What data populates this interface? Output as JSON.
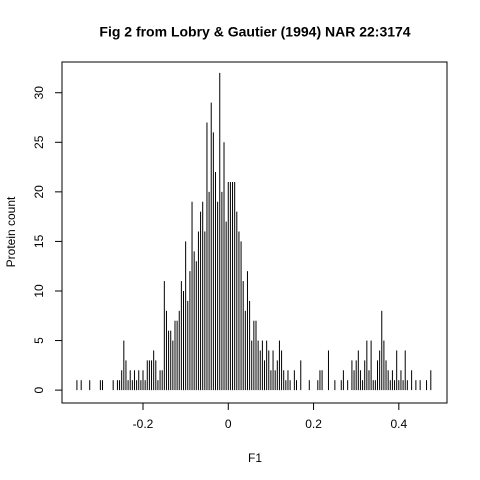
{
  "chart_data": {
    "type": "spike",
    "title": "Fig 2 from Lobry & Gautier (1994) NAR 22:3174",
    "x_label": "F1",
    "y_label": "Protein count",
    "x": [
      -0.355,
      -0.345,
      -0.325,
      -0.3,
      -0.295,
      -0.27,
      -0.26,
      -0.255,
      -0.25,
      -0.245,
      -0.24,
      -0.235,
      -0.23,
      -0.225,
      -0.22,
      -0.215,
      -0.21,
      -0.205,
      -0.2,
      -0.195,
      -0.19,
      -0.185,
      -0.18,
      -0.175,
      -0.17,
      -0.165,
      -0.16,
      -0.155,
      -0.15,
      -0.145,
      -0.14,
      -0.135,
      -0.13,
      -0.125,
      -0.12,
      -0.115,
      -0.11,
      -0.105,
      -0.1,
      -0.095,
      -0.09,
      -0.085,
      -0.08,
      -0.075,
      -0.07,
      -0.065,
      -0.06,
      -0.055,
      -0.05,
      -0.045,
      -0.04,
      -0.035,
      -0.03,
      -0.025,
      -0.02,
      -0.015,
      -0.01,
      -0.005,
      0,
      0.005,
      0.01,
      0.015,
      0.02,
      0.025,
      0.03,
      0.035,
      0.04,
      0.045,
      0.05,
      0.055,
      0.06,
      0.065,
      0.07,
      0.075,
      0.08,
      0.085,
      0.09,
      0.095,
      0.1,
      0.105,
      0.11,
      0.115,
      0.12,
      0.125,
      0.13,
      0.135,
      0.14,
      0.145,
      0.155,
      0.16,
      0.17,
      0.19,
      0.21,
      0.215,
      0.22,
      0.235,
      0.25,
      0.265,
      0.27,
      0.28,
      0.29,
      0.295,
      0.3,
      0.305,
      0.31,
      0.315,
      0.32,
      0.325,
      0.33,
      0.335,
      0.34,
      0.345,
      0.35,
      0.355,
      0.36,
      0.365,
      0.37,
      0.375,
      0.38,
      0.385,
      0.39,
      0.395,
      0.4,
      0.405,
      0.41,
      0.415,
      0.42,
      0.43,
      0.44,
      0.45,
      0.465,
      0.475
    ],
    "values": [
      1,
      1,
      1,
      1,
      1,
      1,
      1,
      1,
      2,
      5,
      3,
      1,
      2,
      1,
      2,
      1,
      2,
      1,
      2,
      1,
      3,
      3,
      3,
      4,
      3,
      1,
      2,
      2,
      11,
      8,
      6,
      6,
      5,
      7,
      7,
      8,
      11,
      10,
      15,
      9,
      12,
      19,
      14,
      13,
      16,
      18,
      19,
      16,
      27,
      20,
      29,
      26,
      22,
      19,
      32,
      20,
      25,
      17,
      21,
      21,
      21,
      21,
      18,
      16,
      15,
      11,
      8,
      12,
      9,
      5,
      7,
      7,
      5,
      4,
      5,
      3,
      5,
      4,
      2,
      4,
      2,
      3,
      5,
      4,
      2,
      1,
      2,
      1,
      2,
      1,
      3,
      1,
      1,
      2,
      2,
      4,
      1,
      1,
      2,
      1,
      3,
      2,
      3,
      4,
      2,
      1,
      3,
      5,
      2,
      5,
      1,
      1,
      3,
      4,
      8,
      5,
      3,
      2,
      1,
      2,
      1,
      4,
      1,
      2,
      1,
      4,
      1,
      2,
      1,
      1,
      1,
      2
    ],
    "color": "#000000",
    "xlim": [
      -0.39,
      0.513
    ],
    "ylim": [
      -1.3,
      33.1
    ],
    "xticks": [
      -0.2,
      0,
      0.2,
      0.4
    ],
    "yticks": [
      0,
      5,
      10,
      15,
      20,
      25,
      30
    ]
  }
}
